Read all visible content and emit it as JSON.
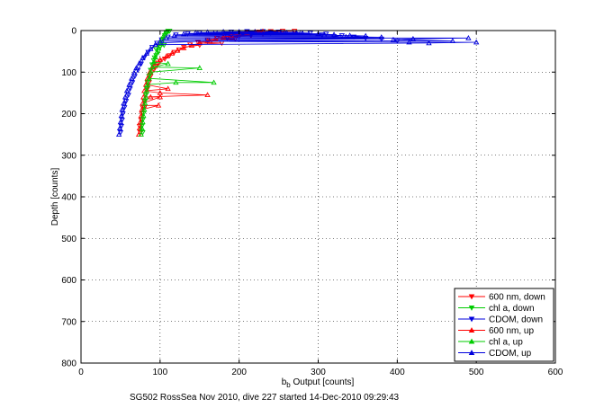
{
  "chart_data": {
    "type": "scatter",
    "title": "",
    "xlabel": "b_b Output [counts]",
    "xlabel_main": "b",
    "xlabel_sub": "b",
    "xlabel_rest": " Output [counts]",
    "ylabel": "Depth [counts]",
    "caption": "SG502 RossSea Nov 2010, dive 227 started 14-Dec-2010 09:29:43",
    "xlim": [
      0,
      600
    ],
    "ylim": [
      0,
      800
    ],
    "y_reversed": true,
    "xticks": [
      0,
      100,
      200,
      300,
      400,
      500,
      600
    ],
    "yticks": [
      0,
      100,
      200,
      300,
      400,
      500,
      600,
      700,
      800
    ],
    "grid": true,
    "legend_position": "bottom-right",
    "series": [
      {
        "name": "600 nm, down",
        "color": "#ff0000",
        "marker": "triangle-down",
        "points": [
          [
            75,
            245
          ],
          [
            74,
            230
          ],
          [
            76,
            215
          ],
          [
            77,
            200
          ],
          [
            78,
            185
          ],
          [
            80,
            170
          ],
          [
            82,
            155
          ],
          [
            84,
            140
          ],
          [
            86,
            125
          ],
          [
            88,
            110
          ],
          [
            92,
            95
          ],
          [
            96,
            85
          ],
          [
            100,
            75
          ],
          [
            106,
            68
          ],
          [
            112,
            60
          ],
          [
            118,
            52
          ],
          [
            124,
            46
          ],
          [
            130,
            40
          ],
          [
            138,
            34
          ],
          [
            148,
            28
          ],
          [
            160,
            22
          ],
          [
            172,
            18
          ],
          [
            185,
            14
          ],
          [
            198,
            10
          ],
          [
            210,
            6
          ],
          [
            225,
            3
          ],
          [
            240,
            2
          ],
          [
            255,
            1
          ],
          [
            270,
            1
          ],
          [
            215,
            12
          ],
          [
            230,
            8
          ],
          [
            245,
            5
          ],
          [
            195,
            20
          ],
          [
            178,
            30
          ],
          [
            165,
            25
          ],
          [
            150,
            35
          ]
        ]
      },
      {
        "name": "chl a, down",
        "color": "#00cc00",
        "marker": "triangle-down",
        "points": [
          [
            78,
            245
          ],
          [
            77,
            230
          ],
          [
            78,
            215
          ],
          [
            79,
            200
          ],
          [
            80,
            185
          ],
          [
            81,
            170
          ],
          [
            82,
            155
          ],
          [
            83,
            140
          ],
          [
            84,
            125
          ],
          [
            86,
            110
          ],
          [
            88,
            95
          ],
          [
            90,
            82
          ],
          [
            92,
            72
          ],
          [
            95,
            60
          ],
          [
            98,
            50
          ],
          [
            100,
            40
          ],
          [
            102,
            30
          ],
          [
            104,
            20
          ],
          [
            106,
            12
          ],
          [
            108,
            6
          ],
          [
            110,
            2
          ],
          [
            112,
            1
          ],
          [
            105,
            35
          ],
          [
            95,
            45
          ],
          [
            93,
            65
          ]
        ]
      },
      {
        "name": "CDOM, down",
        "color": "#0000dd",
        "marker": "triangle-down",
        "points": [
          [
            50,
            245
          ],
          [
            51,
            230
          ],
          [
            52,
            215
          ],
          [
            53,
            200
          ],
          [
            55,
            185
          ],
          [
            57,
            170
          ],
          [
            60,
            155
          ],
          [
            62,
            140
          ],
          [
            65,
            125
          ],
          [
            68,
            110
          ],
          [
            72,
            95
          ],
          [
            76,
            80
          ],
          [
            80,
            65
          ],
          [
            85,
            52
          ],
          [
            90,
            40
          ],
          [
            96,
            30
          ],
          [
            102,
            22
          ],
          [
            110,
            15
          ],
          [
            120,
            10
          ],
          [
            135,
            7
          ],
          [
            150,
            5
          ],
          [
            170,
            4
          ],
          [
            190,
            3
          ],
          [
            210,
            2
          ],
          [
            230,
            2
          ],
          [
            250,
            3
          ],
          [
            270,
            4
          ],
          [
            290,
            6
          ],
          [
            310,
            8
          ],
          [
            330,
            12
          ],
          [
            345,
            15
          ],
          [
            360,
            18
          ],
          [
            380,
            20
          ],
          [
            400,
            25
          ],
          [
            320,
            14
          ],
          [
            305,
            10
          ],
          [
            275,
            4
          ],
          [
            255,
            5
          ],
          [
            240,
            6
          ],
          [
            215,
            9
          ],
          [
            200,
            14
          ],
          [
            185,
            18
          ],
          [
            160,
            25
          ]
        ]
      },
      {
        "name": "600 nm, up",
        "color": "#ff0000",
        "marker": "triangle-up",
        "points": [
          [
            73,
            250
          ],
          [
            74,
            235
          ],
          [
            75,
            220
          ],
          [
            76,
            205
          ],
          [
            77,
            190
          ],
          [
            78,
            175
          ],
          [
            79,
            160
          ],
          [
            88,
            160
          ],
          [
            100,
            160
          ],
          [
            80,
            145
          ],
          [
            82,
            130
          ],
          [
            84,
            115
          ],
          [
            87,
            100
          ],
          [
            91,
            88
          ],
          [
            95,
            78
          ],
          [
            100,
            70
          ],
          [
            108,
            62
          ],
          [
            115,
            55
          ],
          [
            122,
            48
          ],
          [
            130,
            42
          ],
          [
            140,
            36
          ],
          [
            150,
            30
          ],
          [
            160,
            25
          ],
          [
            170,
            20
          ],
          [
            180,
            16
          ],
          [
            190,
            12
          ],
          [
            200,
            8
          ],
          [
            210,
            5
          ],
          [
            220,
            3
          ],
          [
            230,
            2
          ],
          [
            80,
            180
          ],
          [
            98,
            180
          ],
          [
            160,
            155
          ],
          [
            100,
            150
          ],
          [
            110,
            140
          ]
        ]
      },
      {
        "name": "chl a, up",
        "color": "#00cc00",
        "marker": "triangle-up",
        "points": [
          [
            76,
            250
          ],
          [
            77,
            235
          ],
          [
            78,
            220
          ],
          [
            79,
            205
          ],
          [
            80,
            190
          ],
          [
            81,
            175
          ],
          [
            82,
            160
          ],
          [
            83,
            145
          ],
          [
            84,
            130
          ],
          [
            168,
            125
          ],
          [
            120,
            125
          ],
          [
            86,
            115
          ],
          [
            88,
            100
          ],
          [
            90,
            88
          ],
          [
            92,
            76
          ],
          [
            94,
            64
          ],
          [
            96,
            52
          ],
          [
            98,
            42
          ],
          [
            100,
            32
          ],
          [
            102,
            22
          ],
          [
            104,
            14
          ],
          [
            106,
            7
          ],
          [
            108,
            2
          ],
          [
            150,
            90
          ],
          [
            110,
            80
          ]
        ]
      },
      {
        "name": "CDOM, up",
        "color": "#0000dd",
        "marker": "triangle-up",
        "points": [
          [
            48,
            250
          ],
          [
            49,
            235
          ],
          [
            50,
            220
          ],
          [
            51,
            205
          ],
          [
            52,
            190
          ],
          [
            54,
            175
          ],
          [
            56,
            160
          ],
          [
            58,
            145
          ],
          [
            61,
            130
          ],
          [
            64,
            115
          ],
          [
            67,
            102
          ],
          [
            70,
            90
          ],
          [
            74,
            78
          ],
          [
            78,
            66
          ],
          [
            83,
            55
          ],
          [
            88,
            44
          ],
          [
            94,
            34
          ],
          [
            100,
            26
          ],
          [
            108,
            18
          ],
          [
            118,
            12
          ],
          [
            130,
            8
          ],
          [
            145,
            5
          ],
          [
            160,
            4
          ],
          [
            180,
            3
          ],
          [
            200,
            3
          ],
          [
            220,
            3
          ],
          [
            240,
            4
          ],
          [
            260,
            5
          ],
          [
            280,
            6
          ],
          [
            300,
            8
          ],
          [
            320,
            10
          ],
          [
            340,
            12
          ],
          [
            360,
            13
          ],
          [
            380,
            16
          ],
          [
            395,
            22
          ],
          [
            415,
            28
          ],
          [
            440,
            30
          ],
          [
            470,
            25
          ],
          [
            490,
            18
          ],
          [
            500,
            28
          ],
          [
            335,
            15
          ],
          [
            420,
            20
          ]
        ]
      }
    ]
  }
}
